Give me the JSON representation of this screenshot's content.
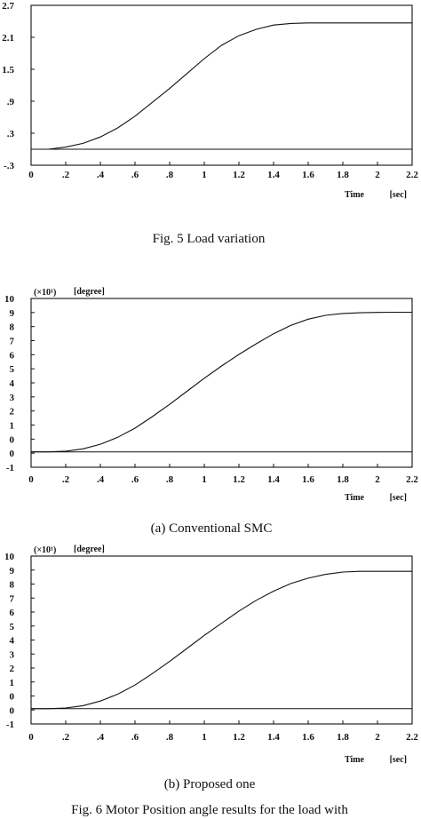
{
  "figure": {
    "captions": [
      "Fig. 5 Load variation",
      "(a) Conventional SMC",
      "(b) Proposed one",
      "Fig. 6 Motor Position angle results for the load with"
    ]
  },
  "chart_data": [
    {
      "type": "line",
      "title": "",
      "xlabel": "Time",
      "xunit": "[sec]",
      "ylabel": "",
      "ymult": "",
      "xlim": [
        0,
        2.2
      ],
      "ylim": [
        -0.3,
        2.7
      ],
      "xticks": [
        "0",
        ".2",
        ".4",
        ".6",
        ".8",
        "1",
        "1.2",
        "1.4",
        "1.6",
        "1.8",
        "2",
        "2.2"
      ],
      "yticks": [
        "2.7",
        "2.1",
        "1.5",
        ".9",
        ".3",
        "-.3"
      ],
      "series": [
        {
          "x": [
            0,
            0.1,
            0.2,
            0.3,
            0.4,
            0.5,
            0.6,
            0.7,
            0.8,
            0.9,
            1.0,
            1.1,
            1.2,
            1.3,
            1.4,
            1.5,
            1.6,
            1.7,
            1.8,
            1.9,
            2.0,
            2.1,
            2.2
          ],
          "y": [
            0.0,
            0.0,
            0.04,
            0.11,
            0.23,
            0.4,
            0.62,
            0.88,
            1.14,
            1.42,
            1.7,
            1.95,
            2.13,
            2.25,
            2.33,
            2.36,
            2.37,
            2.37,
            2.37,
            2.37,
            2.37,
            2.37,
            2.37
          ]
        },
        {
          "x": [
            0,
            2.2
          ],
          "y": [
            0.0,
            0.0
          ]
        }
      ]
    },
    {
      "type": "line",
      "title": "",
      "xlabel": "Time",
      "xunit": "[sec]",
      "ylabel": "[degree]",
      "ymult": "(×10¹)",
      "xlim": [
        0,
        2.2
      ],
      "ylim": [
        -1,
        10
      ],
      "xticks": [
        "0",
        ".2",
        ".4",
        ".6",
        ".8",
        "1",
        "1.2",
        "1.4",
        "1.6",
        "1.8",
        "2",
        "2.2"
      ],
      "yticks": [
        "10",
        "9",
        "8",
        "7",
        "6",
        "5",
        "4",
        "3",
        "2",
        "1",
        "0",
        "0",
        "-1"
      ],
      "series": [
        {
          "x": [
            0,
            0.1,
            0.2,
            0.3,
            0.4,
            0.5,
            0.6,
            0.7,
            0.8,
            0.9,
            1.0,
            1.1,
            1.2,
            1.3,
            1.4,
            1.5,
            1.6,
            1.7,
            1.8,
            1.9,
            2.0,
            2.1,
            2.2
          ],
          "y": [
            0.0,
            0.0,
            0.05,
            0.2,
            0.5,
            0.95,
            1.55,
            2.3,
            3.1,
            3.95,
            4.8,
            5.6,
            6.35,
            7.05,
            7.7,
            8.25,
            8.65,
            8.9,
            9.02,
            9.07,
            9.09,
            9.1,
            9.1
          ]
        },
        {
          "x": [
            0,
            2.2
          ],
          "y": [
            0.0,
            0.0
          ]
        }
      ]
    },
    {
      "type": "line",
      "title": "",
      "xlabel": "Time",
      "xunit": "[sec]",
      "ylabel": "[degree]",
      "ymult": "(×10¹)",
      "xlim": [
        0,
        2.2
      ],
      "ylim": [
        -1,
        10
      ],
      "xticks": [
        "0",
        ".2",
        ".4",
        ".6",
        ".8",
        "1",
        "1.2",
        "1.4",
        "1.6",
        "1.8",
        "2",
        "2.2"
      ],
      "yticks": [
        "10",
        "9",
        "8",
        "7",
        "6",
        "5",
        "4",
        "3",
        "2",
        "1",
        "0",
        "0",
        "-1"
      ],
      "series": [
        {
          "x": [
            0,
            0.1,
            0.2,
            0.3,
            0.4,
            0.5,
            0.6,
            0.7,
            0.8,
            0.9,
            1.0,
            1.1,
            1.2,
            1.3,
            1.4,
            1.5,
            1.6,
            1.7,
            1.8,
            1.9,
            2.0,
            2.1,
            2.2
          ],
          "y": [
            0.0,
            0.0,
            0.05,
            0.2,
            0.5,
            0.95,
            1.55,
            2.3,
            3.1,
            3.95,
            4.8,
            5.6,
            6.4,
            7.1,
            7.7,
            8.2,
            8.55,
            8.8,
            8.95,
            9.0,
            9.0,
            9.0,
            9.0
          ]
        },
        {
          "x": [
            0,
            2.2
          ],
          "y": [
            0.0,
            0.0
          ]
        }
      ]
    }
  ]
}
